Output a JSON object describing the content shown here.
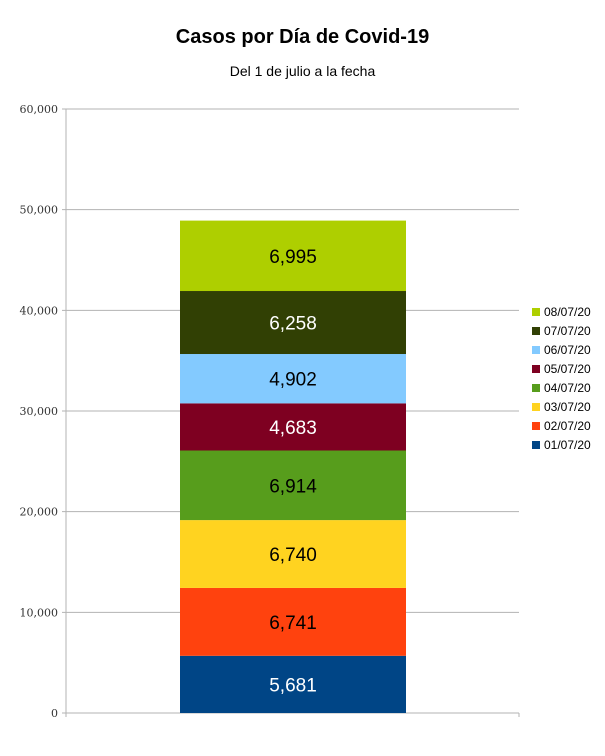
{
  "chart_data": {
    "type": "bar",
    "stacked": true,
    "title": "Casos por Día de Covid-19",
    "subtitle": "Del 1 de julio a la fecha",
    "ylim": [
      0,
      60000
    ],
    "yticks": [
      {
        "value": 0,
        "label": "0"
      },
      {
        "value": 10000,
        "label": "10,000"
      },
      {
        "value": 20000,
        "label": "20,000"
      },
      {
        "value": 30000,
        "label": "30,000"
      },
      {
        "value": 40000,
        "label": "40,000"
      },
      {
        "value": 50000,
        "label": "50,000"
      },
      {
        "value": 60000,
        "label": "60,000"
      }
    ],
    "grid": true,
    "legend_position": "right",
    "series": [
      {
        "name": "01/07/20",
        "value": 5681,
        "label": "5,681",
        "color": "#004586",
        "label_color": "#ffffff"
      },
      {
        "name": "02/07/20",
        "value": 6741,
        "label": "6,741",
        "color": "#ff420e",
        "label_color": "#000000"
      },
      {
        "name": "03/07/20",
        "value": 6740,
        "label": "6,740",
        "color": "#ffd320",
        "label_color": "#000000"
      },
      {
        "name": "04/07/20",
        "value": 6914,
        "label": "6,914",
        "color": "#579d1c",
        "label_color": "#000000"
      },
      {
        "name": "05/07/20",
        "value": 4683,
        "label": "4,683",
        "color": "#7e0021",
        "label_color": "#ffffff"
      },
      {
        "name": "06/07/20",
        "value": 4902,
        "label": "4,902",
        "color": "#83caff",
        "label_color": "#000000"
      },
      {
        "name": "07/07/20",
        "value": 6258,
        "label": "6,258",
        "color": "#314004",
        "label_color": "#ffffff"
      },
      {
        "name": "08/07/20",
        "value": 6995,
        "label": "6,995",
        "color": "#aecf00",
        "label_color": "#000000"
      }
    ]
  }
}
